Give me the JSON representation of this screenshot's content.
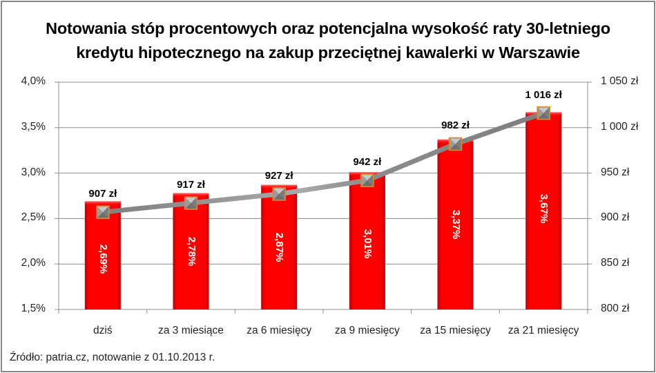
{
  "chart_data": {
    "type": "bar",
    "title": "Notowania stóp procentowych oraz potencjalna wysokość raty 30-letniego kredytu hipotecznego na zakup przeciętnej kawalerki w Warszawie",
    "title_lines": [
      "Notowania stóp procentowych oraz potencjalna wysokość raty 30-letniego",
      "kredytu hipotecznego na zakup przeciętnej kawalerki w Warszawie"
    ],
    "categories": [
      "dziś",
      "za 3 miesiące",
      "za 6 miesięcy",
      "za 9 miesięcy",
      "za 15 miesięcy",
      "za 21 miesięcy"
    ],
    "series": [
      {
        "name": "Oprocentowanie",
        "type": "bar",
        "axis": "left",
        "values": [
          2.69,
          2.78,
          2.87,
          3.01,
          3.37,
          3.67
        ],
        "labels": [
          "2,69%",
          "2,78%",
          "2,87%",
          "3,01%",
          "3,37%",
          "3,67%"
        ],
        "color": "#ff0000"
      },
      {
        "name": "Rata kredytu",
        "type": "line",
        "axis": "right",
        "values": [
          907,
          917,
          927,
          942,
          982,
          1016
        ],
        "labels": [
          "907 zł",
          "917 zł",
          "927 zł",
          "942 zł",
          "982 zł",
          "1 016 zł"
        ],
        "color": "#8c8c8c",
        "marker_color": "#8a8a8a",
        "marker_border": "#e08a1e"
      }
    ],
    "y_left": {
      "ylim": [
        1.5,
        4.0
      ],
      "ticks": [
        "1,5%",
        "2,0%",
        "2,5%",
        "3,0%",
        "3,5%",
        "4,0%"
      ]
    },
    "y_right": {
      "ylim": [
        800,
        1050
      ],
      "ticks": [
        "800 zł",
        "850 zł",
        "900 zł",
        "950 zł",
        "1 000 zł",
        "1 050 zł"
      ]
    },
    "xlabel": "",
    "ylabel": "",
    "grid": true,
    "legend": "none",
    "source": "Źródło: patria.cz, notowanie z 01.10.2013 r."
  }
}
